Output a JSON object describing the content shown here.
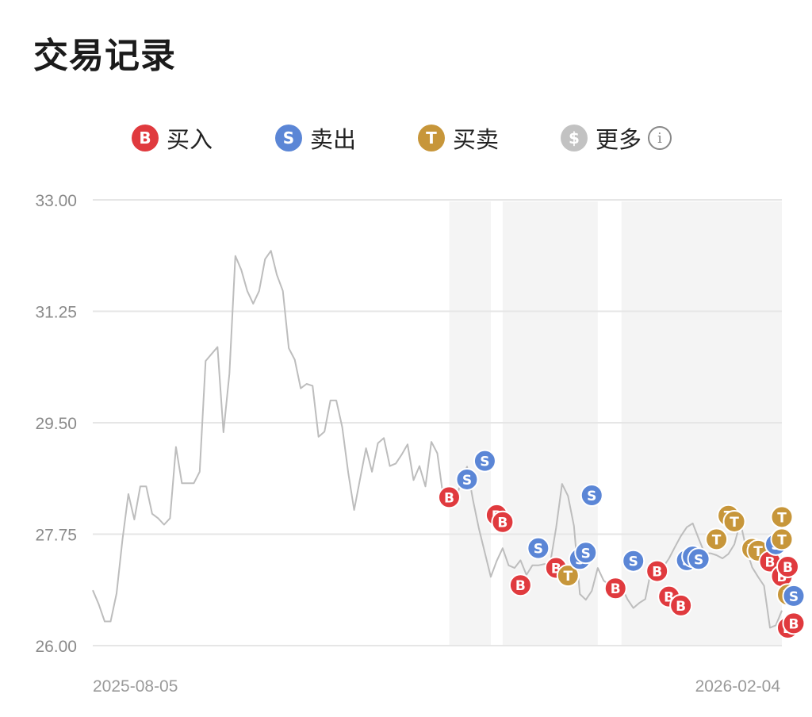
{
  "page": {
    "title": "交易记录"
  },
  "legend": [
    {
      "key": "B",
      "label": "买入",
      "color": "#e03a3e"
    },
    {
      "key": "S",
      "label": "卖出",
      "color": "#5b86d6"
    },
    {
      "key": "T",
      "label": "买卖",
      "color": "#c7963a"
    },
    {
      "key": "$",
      "label": "更多",
      "color": "#c2c2c2"
    }
  ],
  "more_info_icon": "info-circle-icon",
  "chart_data": {
    "type": "line",
    "x_start_label": "2025-08-05",
    "x_end_label": "2026-02-04",
    "ylim": [
      26.0,
      33.0
    ],
    "y_ticks": [
      "33.00",
      "31.25",
      "29.50",
      "27.75",
      "26.00"
    ],
    "grid": true,
    "series": [
      {
        "values": [
          26.87,
          26.65,
          26.38,
          26.38,
          26.82,
          27.67,
          28.38,
          27.98,
          28.5,
          28.5,
          28.07,
          28.0,
          27.9,
          28.0,
          29.12,
          28.55,
          28.55,
          28.55,
          28.73,
          30.47,
          30.58,
          30.69,
          29.35,
          30.27,
          32.12,
          31.9,
          31.57,
          31.37,
          31.57,
          32.07,
          32.2,
          31.82,
          31.57,
          30.67,
          30.49,
          30.04,
          30.11,
          30.08,
          29.28,
          29.36,
          29.85,
          29.85,
          29.43,
          28.72,
          28.13,
          28.62,
          29.1,
          28.73,
          29.18,
          29.26,
          28.82,
          28.86,
          29.0,
          29.16,
          28.6,
          28.82,
          28.5,
          29.2,
          29.02,
          28.33,
          28.44,
          28.22,
          28.6,
          28.81,
          28.29,
          27.84,
          27.46,
          27.08,
          27.33,
          27.53,
          27.26,
          27.22,
          27.34,
          27.11,
          27.26,
          27.26,
          27.28,
          27.29,
          27.85,
          28.54,
          28.35,
          27.88,
          26.81,
          26.72,
          26.86,
          27.22,
          27.02,
          26.95,
          27.05,
          26.93,
          26.73,
          26.59,
          26.67,
          26.73,
          27.19,
          27.21,
          27.23,
          27.37,
          27.55,
          27.72,
          27.86,
          27.92,
          27.68,
          27.45,
          27.45,
          27.42,
          27.37,
          27.44,
          27.59,
          27.94,
          27.52,
          27.23,
          27.08,
          26.94,
          26.28,
          26.32,
          26.55
        ]
      }
    ],
    "markers": [
      {
        "type": "B",
        "i": 60,
        "y": 28.33
      },
      {
        "type": "S",
        "i": 63,
        "y": 28.61
      },
      {
        "type": "S",
        "i": 66,
        "y": 28.9
      },
      {
        "type": "B",
        "i": 68,
        "y": 28.05
      },
      {
        "type": "B",
        "i": 69,
        "y": 27.94
      },
      {
        "type": "B",
        "i": 72,
        "y": 26.95
      },
      {
        "type": "S",
        "i": 75,
        "y": 27.53
      },
      {
        "type": "B",
        "i": 78,
        "y": 27.22
      },
      {
        "type": "T",
        "i": 80,
        "y": 27.1
      },
      {
        "type": "S",
        "i": 82,
        "y": 27.36
      },
      {
        "type": "S",
        "i": 83,
        "y": 27.46
      },
      {
        "type": "S",
        "i": 84,
        "y": 28.36
      },
      {
        "type": "B",
        "i": 88,
        "y": 26.9
      },
      {
        "type": "S",
        "i": 91,
        "y": 27.33
      },
      {
        "type": "B",
        "i": 95,
        "y": 27.17
      },
      {
        "type": "B",
        "i": 97,
        "y": 26.77
      },
      {
        "type": "B",
        "i": 99,
        "y": 26.63
      },
      {
        "type": "S",
        "i": 100,
        "y": 27.34
      },
      {
        "type": "S",
        "i": 101,
        "y": 27.4
      },
      {
        "type": "S",
        "i": 102,
        "y": 27.36
      },
      {
        "type": "T",
        "i": 105,
        "y": 27.67
      },
      {
        "type": "T",
        "i": 107,
        "y": 28.04
      },
      {
        "type": "T",
        "i": 108,
        "y": 27.95
      },
      {
        "type": "T",
        "i": 111,
        "y": 27.52
      },
      {
        "type": "T",
        "i": 112,
        "y": 27.49
      },
      {
        "type": "B",
        "i": 114,
        "y": 27.32
      },
      {
        "type": "S",
        "i": 115,
        "y": 27.59
      },
      {
        "type": "T",
        "i": 116,
        "y": 28.02
      },
      {
        "type": "T",
        "i": 116,
        "y": 27.67
      },
      {
        "type": "B",
        "i": 116,
        "y": 27.09
      },
      {
        "type": "B",
        "i": 117,
        "y": 27.24
      },
      {
        "type": "T",
        "i": 117,
        "y": 26.8
      },
      {
        "type": "S",
        "i": 118,
        "y": 26.78
      },
      {
        "type": "B",
        "i": 117,
        "y": 26.28
      },
      {
        "type": "B",
        "i": 118,
        "y": 26.35
      }
    ],
    "shaded_ranges": [
      [
        60,
        67
      ],
      [
        69,
        85
      ],
      [
        89,
        122
      ]
    ]
  }
}
